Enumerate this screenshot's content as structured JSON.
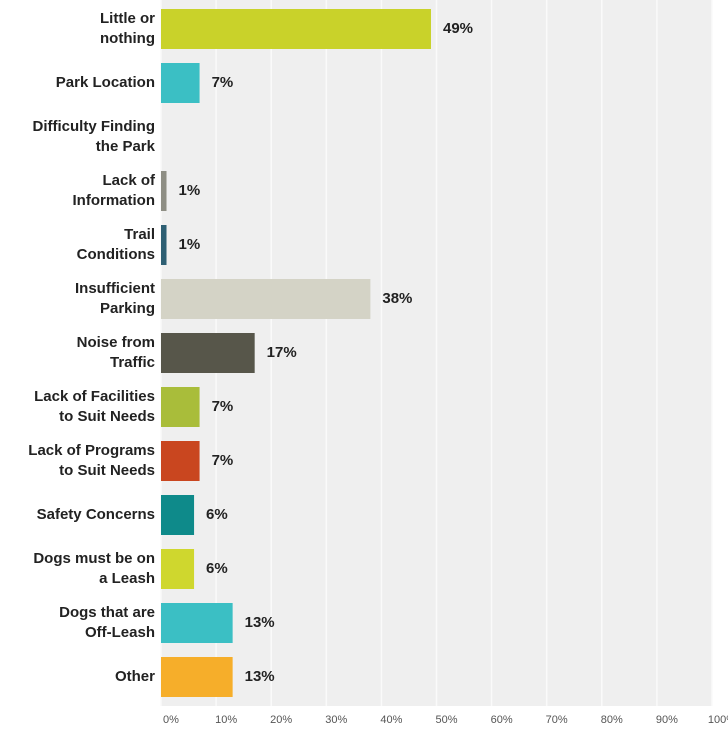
{
  "chart_data": {
    "type": "bar",
    "orientation": "horizontal",
    "categories": [
      [
        "Little or",
        "nothing"
      ],
      [
        "Park Location"
      ],
      [
        "Difficulty Finding",
        "the Park"
      ],
      [
        "Lack of",
        "Information"
      ],
      [
        "Trail",
        "Conditions"
      ],
      [
        "Insufficient",
        "Parking"
      ],
      [
        "Noise from",
        "Traffic"
      ],
      [
        "Lack of Facilities",
        "to Suit Needs"
      ],
      [
        "Lack of Programs",
        "to Suit Needs"
      ],
      [
        "Safety Concerns"
      ],
      [
        "Dogs must be on",
        "a Leash"
      ],
      [
        "Dogs that are",
        "Off-Leash"
      ],
      [
        "Other"
      ]
    ],
    "values": [
      49,
      7,
      0,
      1,
      1,
      38,
      17,
      7,
      7,
      6,
      6,
      13,
      13
    ],
    "value_labels": [
      "49%",
      "7%",
      null,
      "1%",
      "1%",
      "38%",
      "17%",
      "7%",
      "7%",
      "6%",
      "6%",
      "13%",
      "13%"
    ],
    "colors": [
      "#c9d22a",
      "#3bbfc4",
      "#3bbfc4",
      "#8e8e84",
      "#2d5f73",
      "#d4d3c6",
      "#57564a",
      "#a9bd3a",
      "#c9461f",
      "#0e8a8a",
      "#cfd72e",
      "#3bbfc4",
      "#f6ae2a"
    ],
    "xlim": [
      0,
      100
    ],
    "xticks": [
      {
        "value": 0,
        "label": "0%"
      },
      {
        "value": 10,
        "label": "10%"
      },
      {
        "value": 20,
        "label": "20%"
      },
      {
        "value": 30,
        "label": "30%"
      },
      {
        "value": 40,
        "label": "40%"
      },
      {
        "value": 50,
        "label": "50%"
      },
      {
        "value": 60,
        "label": "60%"
      },
      {
        "value": 70,
        "label": "70%"
      },
      {
        "value": 80,
        "label": "80%"
      },
      {
        "value": 90,
        "label": "90%"
      },
      {
        "value": 100,
        "label": "100%"
      }
    ],
    "grid": true
  }
}
